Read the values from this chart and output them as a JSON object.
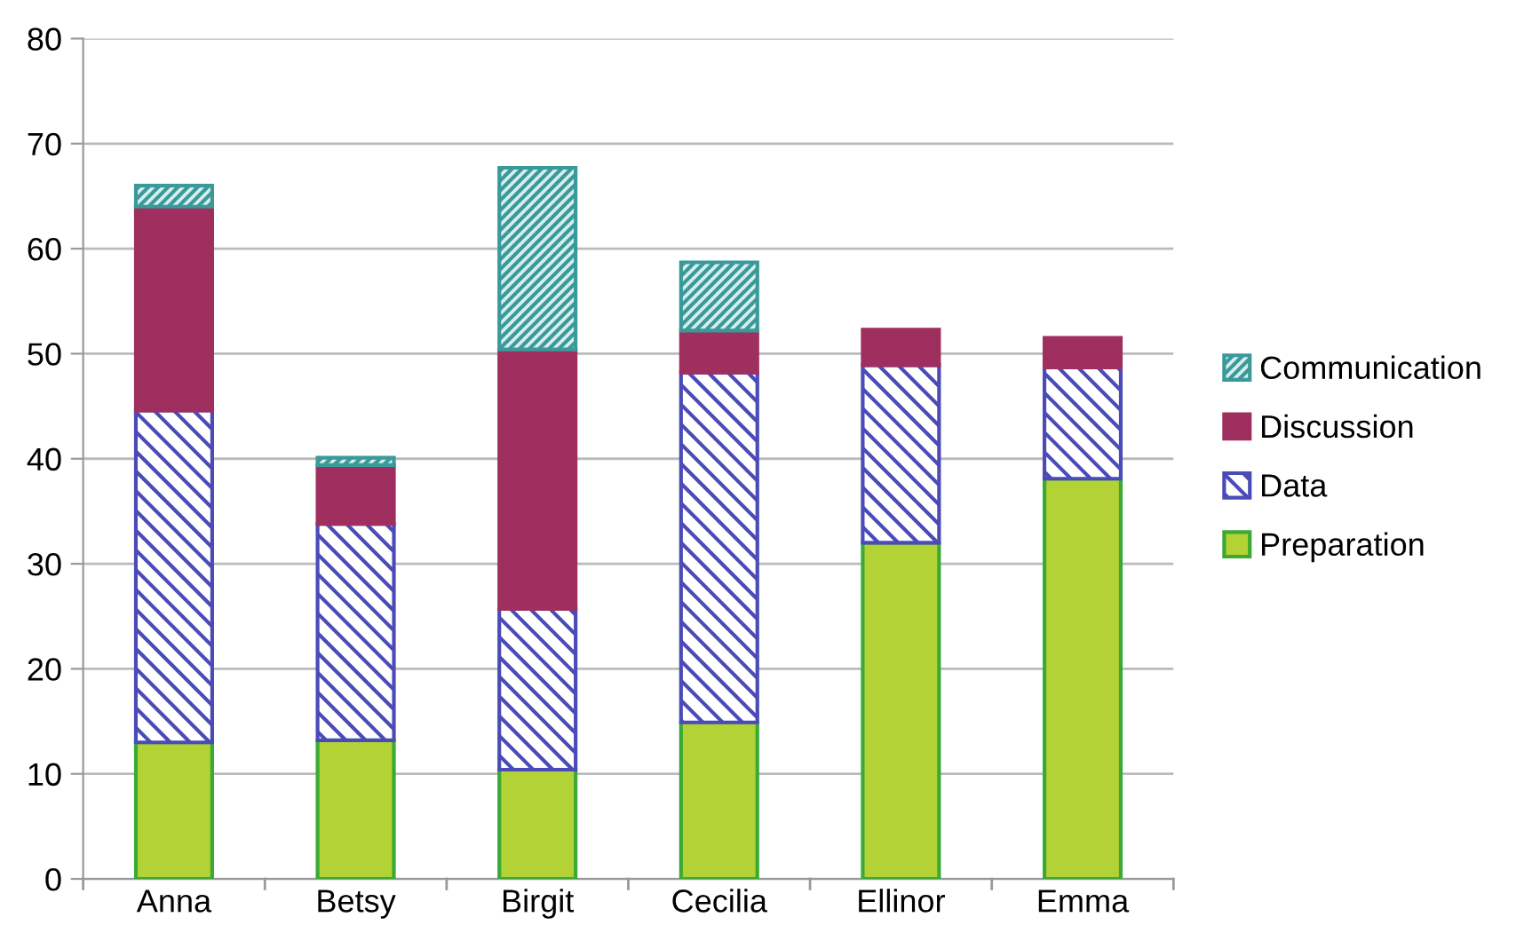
{
  "chart_data": {
    "type": "bar",
    "stacked": true,
    "categories": [
      "Anna",
      "Betsy",
      "Birgit",
      "Cecilia",
      "Ellinor",
      "Emma"
    ],
    "series": [
      {
        "name": "Preparation",
        "color": "#b2d235",
        "values": [
          13.0,
          13.2,
          10.4,
          14.9,
          32.0,
          38.1
        ]
      },
      {
        "name": "Data",
        "color": "#4b4bb8",
        "values": [
          31.6,
          20.6,
          15.3,
          33.3,
          16.9,
          10.6
        ]
      },
      {
        "name": "Discussion",
        "color": "#9e2f5e",
        "values": [
          19.4,
          5.6,
          24.7,
          4.0,
          3.4,
          2.8
        ]
      },
      {
        "name": "Communication",
        "color": "#3a9a9a",
        "values": [
          2.0,
          0.7,
          17.3,
          6.5,
          null,
          null
        ]
      }
    ],
    "ylim": [
      0,
      80
    ],
    "yticks": [
      0,
      10,
      20,
      30,
      40,
      50,
      60,
      70,
      80
    ],
    "grid": "y",
    "legend": "right"
  }
}
